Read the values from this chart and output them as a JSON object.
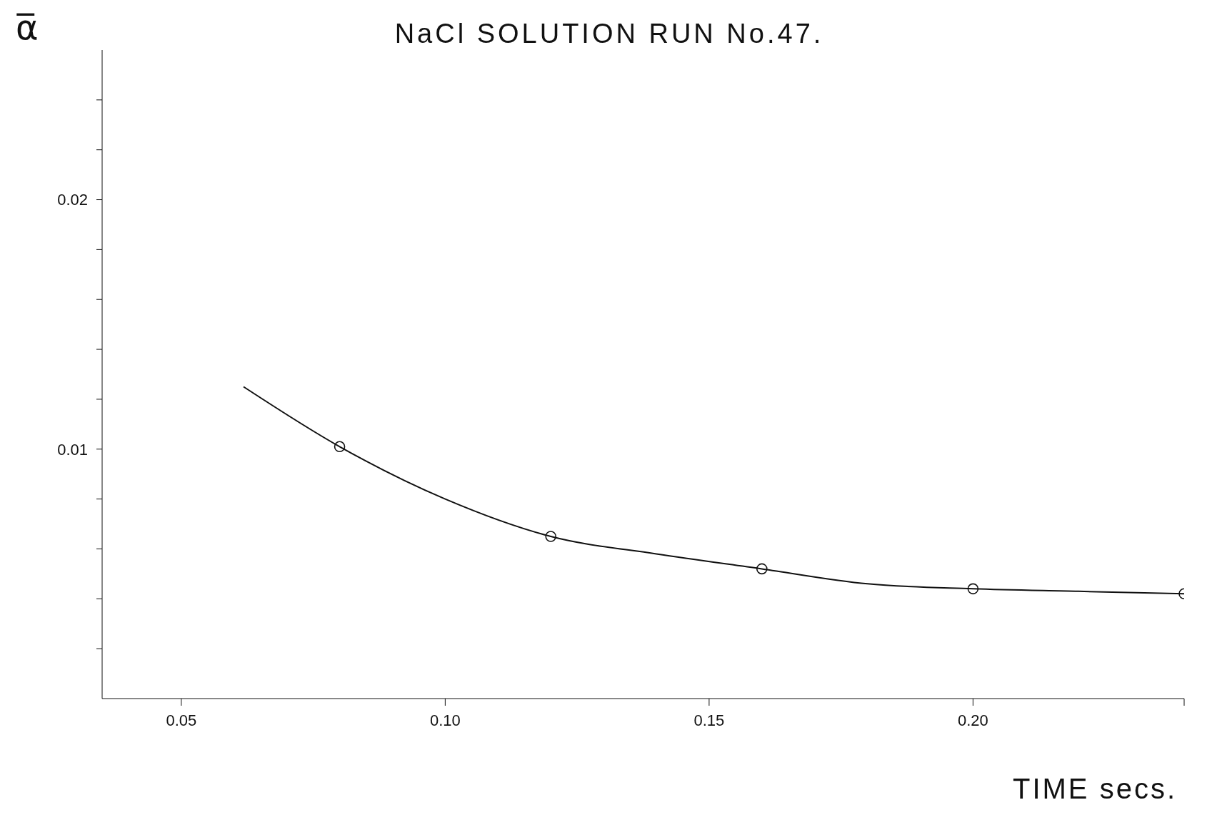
{
  "chart_data": {
    "type": "line",
    "title": "NaCl SOLUTION RUN No.47.",
    "xlabel": "TIME secs.",
    "ylabel": "α̅",
    "xlim": [
      0.035,
      0.24
    ],
    "ylim": [
      0,
      0.026
    ],
    "xticks": [
      0.05,
      {
        "value": 0.1,
        "label": "0.10"
      },
      0.15,
      {
        "value": 0.2,
        "label": "0.20"
      },
      {
        "value": 0.24,
        "label": null
      }
    ],
    "yticks": [
      {
        "value": 0.002,
        "label": null
      },
      {
        "value": 0.004,
        "label": null
      },
      {
        "value": 0.006,
        "label": null
      },
      {
        "value": 0.008,
        "label": null
      },
      0.01,
      {
        "value": 0.012,
        "label": null
      },
      {
        "value": 0.014,
        "label": null
      },
      {
        "value": 0.016,
        "label": null
      },
      {
        "value": 0.018,
        "label": null
      },
      0.02,
      {
        "value": 0.022,
        "label": null
      },
      {
        "value": 0.024,
        "label": null
      }
    ],
    "grid": false,
    "series": [
      {
        "color": "#111111",
        "marker": "none",
        "line_style": "solid",
        "x": [
          0.0618,
          0.08,
          0.1,
          0.12,
          0.14,
          0.16,
          0.18,
          0.2,
          0.22,
          0.24
        ],
        "values": [
          0.0125,
          0.0101,
          0.008,
          0.0065,
          0.0058,
          0.0052,
          0.0046,
          0.0044,
          0.0043,
          0.0042
        ]
      },
      {
        "type": "scatter",
        "color": "#111111",
        "marker": "circle",
        "x": [
          0.08,
          0.12,
          0.16,
          0.2,
          0.24
        ],
        "values": [
          0.0101,
          0.0065,
          0.0052,
          0.0044,
          0.0042
        ]
      }
    ]
  }
}
